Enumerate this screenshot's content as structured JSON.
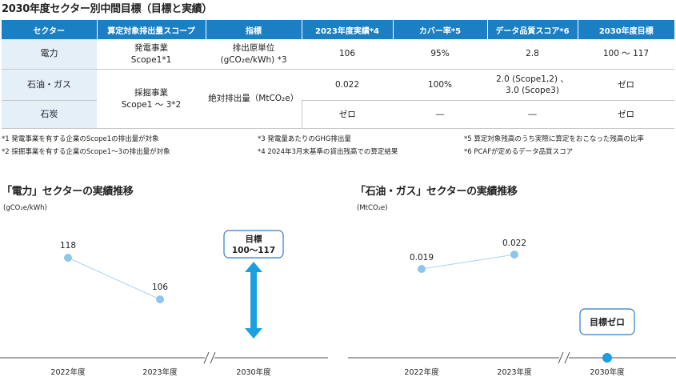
{
  "title": "2030年度セクター別中間目標（目標と実績）",
  "table": {
    "headers": [
      "セクター",
      "算定対象排出量スコープ",
      "指標",
      "2023年度実績*4",
      "カバー率*5",
      "データ品質スコア*6",
      "2030年度目標"
    ],
    "rows": [
      {
        "sector": "電力",
        "scope_l1": "発電事業",
        "scope_l2": "Scope1*1",
        "metric_l1": "排出原単位",
        "metric_l2": "(gCO₂e/kWh) *3",
        "actual": "106",
        "coverage": "95%",
        "quality": "2.8",
        "target": "100 〜 117"
      },
      {
        "sector": "石油・ガス",
        "actual": "0.022",
        "coverage": "100%",
        "quality_l1": "2.0 (Scope1,2) 、",
        "quality_l2": "3.0 (Scope3)",
        "target": "ゼロ"
      },
      {
        "sector": "石炭",
        "actual": "ゼロ",
        "coverage": "―",
        "quality": "―",
        "target": "ゼロ"
      }
    ],
    "merged_scope_l1": "採掘事業",
    "merged_scope_l2": "Scope1 〜 3*2",
    "merged_metric": "絶対排出量（MtCO₂e）"
  },
  "notes": [
    "*1 発電事業を有する企業のScope1の排出量が対象",
    "*2 採掘事業を有する企業のScope1〜3の排出量が対象",
    "*3 発電量あたりのGHG排出量",
    "*4 2024年3月末基準の貸出残高での算定結果",
    "*5 算定対象残高のうち実際に算定をおこなった残高の比率",
    "*6 PCAFが定めるデータ品質スコア"
  ],
  "colors": {
    "header": "#1b7fc4",
    "point": "#8dc6ec",
    "line": "#a9d3f0",
    "arrow": "#1aa0e0",
    "target_dot": "#1a9fe0",
    "box_border": "#2b7cc4"
  },
  "chart_data": [
    {
      "type": "line",
      "title": "「電力」セクターの実績推移",
      "unit": "(gCO₂e/kWh)",
      "categories": [
        "2022年度",
        "2023年度",
        "2030年度"
      ],
      "series": [
        {
          "values": [
            118,
            106,
            null
          ]
        }
      ],
      "value_labels": [
        "118",
        "106"
      ],
      "target": {
        "label_l1": "目標",
        "label_l2": "100〜117",
        "range": [
          100,
          117
        ]
      },
      "axis_break": true
    },
    {
      "type": "line",
      "title": "「石油・ガス」セクターの実績推移",
      "unit": "(MtCO₂e)",
      "categories": [
        "2022年度",
        "2023年度",
        "2030年度"
      ],
      "series": [
        {
          "values": [
            0.019,
            0.022,
            0
          ]
        }
      ],
      "value_labels": [
        "0.019",
        "0.022"
      ],
      "target": {
        "label": "目標ゼロ",
        "value": 0
      },
      "axis_break": true
    }
  ]
}
